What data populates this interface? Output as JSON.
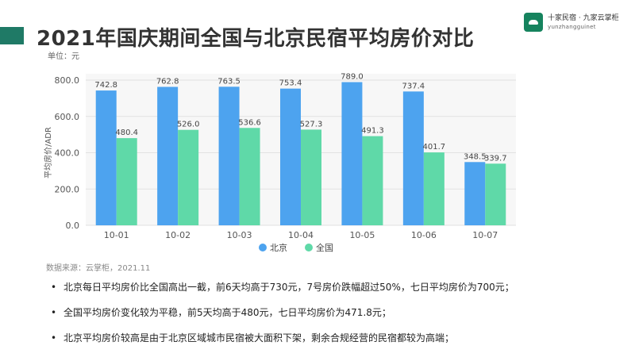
{
  "header": {
    "title": "2021年国庆期间全国与北京民宿平均房价对比",
    "accent_color": "#1f7a66"
  },
  "logo": {
    "name": "十家民宿 · 九家云掌柜",
    "url": "yunzhangguinet"
  },
  "unit_label": "单位：元",
  "chart_data": {
    "type": "bar",
    "categories": [
      "10-01",
      "10-02",
      "10-03",
      "10-04",
      "10-05",
      "10-06",
      "10-07"
    ],
    "series": [
      {
        "name": "北京",
        "color": "#4da3ef",
        "values": [
          742.8,
          762.8,
          763.5,
          753.4,
          789.0,
          737.4,
          348.5
        ]
      },
      {
        "name": "全国",
        "color": "#5fd9a8",
        "values": [
          480.4,
          526.0,
          536.6,
          527.3,
          491.3,
          401.7,
          339.7
        ]
      }
    ],
    "value_labels": [
      [
        "742.8",
        "762.8",
        "763.5",
        "753.4",
        "789.0",
        "737.4",
        "348.5"
      ],
      [
        "480.4",
        "526.0",
        "536.6",
        "527.3",
        "491.3",
        "401.7",
        "339.7"
      ]
    ],
    "ylabel": "平均房价/ADR",
    "ylim": [
      0,
      800
    ],
    "yticks": [
      "0.0",
      "200.0",
      "400.0",
      "600.0",
      "800.0"
    ],
    "grid": true,
    "legend_position": "bottom"
  },
  "source": "数据来源：云掌柜，2021.11",
  "bullets": [
    "北京每日平均房价比全国高出一截，前6天均高于730元，7号房价跌幅超过50%，七日平均房价为700元；",
    "全国平均房价变化较为平稳，前5天均高于480元，七日平均房价为471.8元；",
    "北京平均房价较高是由于北京区域城市民宿被大面积下架，剩余合规经营的民宿都较为高端；"
  ]
}
